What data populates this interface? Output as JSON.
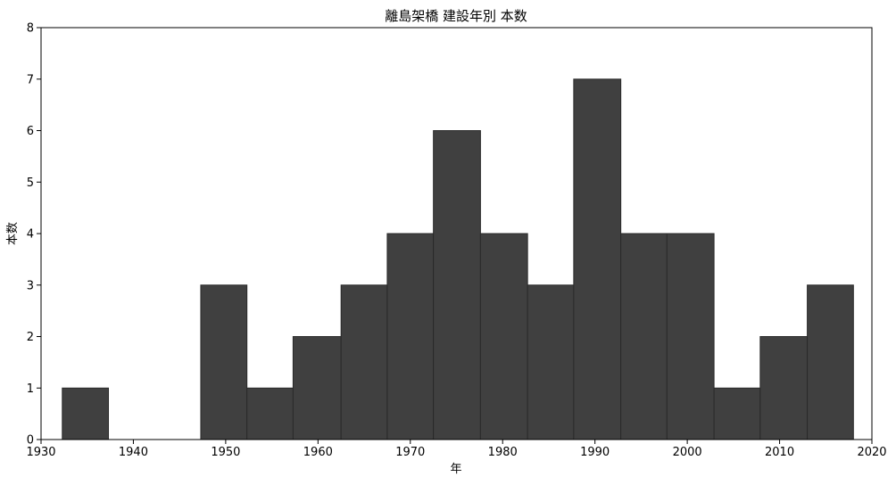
{
  "chart_data": {
    "type": "bar",
    "subtype": "histogram",
    "title": "離島架橋 建設年別 本数",
    "xlabel": "年",
    "ylabel": "本数",
    "bin_edges": [
      1932.3,
      1937.3,
      1942.3,
      1947.3,
      1952.3,
      1957.3,
      1962.5,
      1967.5,
      1972.5,
      1977.6,
      1982.7,
      1987.7,
      1992.8,
      1997.8,
      2002.9,
      2007.9,
      2013.0,
      2018.0
    ],
    "values": [
      1,
      0,
      0,
      3,
      1,
      2,
      3,
      4,
      6,
      4,
      3,
      7,
      4,
      4,
      1,
      2,
      3
    ],
    "xlim": [
      1930,
      2020
    ],
    "ylim": [
      0,
      8
    ],
    "xticks": [
      "1930",
      "1940",
      "1950",
      "1960",
      "1970",
      "1980",
      "1990",
      "2000",
      "2010",
      "2020"
    ],
    "yticks": [
      "0",
      "1",
      "2",
      "3",
      "4",
      "5",
      "6",
      "7",
      "8"
    ],
    "bar_color": "#404040",
    "edge_color": "#2a2a2a",
    "grid": false,
    "legend": "none"
  }
}
